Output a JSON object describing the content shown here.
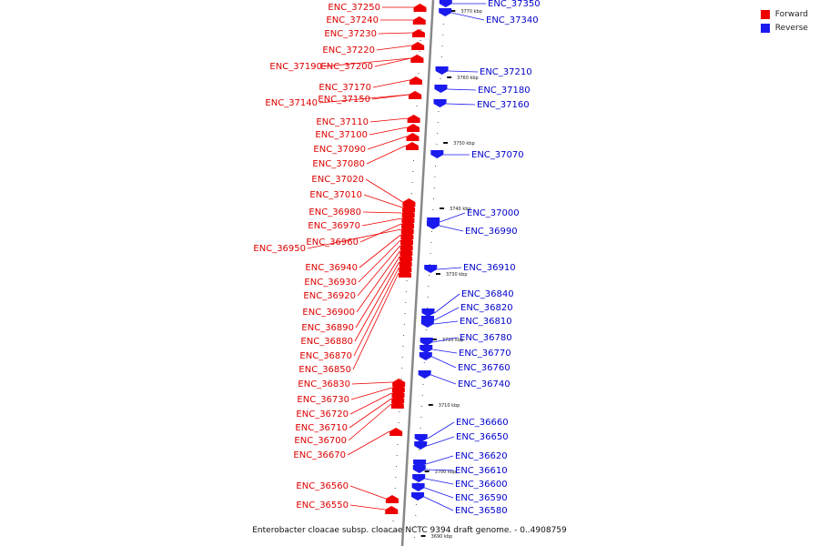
{
  "colors": {
    "forward": "#ee0000",
    "reverse": "#1a1aee",
    "backbone": "#888888",
    "tick": "#111111"
  },
  "legend": [
    {
      "label": "Forward",
      "color": "#ee0000"
    },
    {
      "label": "Reverse",
      "color": "#1a1aee"
    }
  ],
  "caption": "Enterobacter cloacae subsp. cloacae NCTC 9394 draft genome. - 0..4908759",
  "ticks": [
    "3770 kbp",
    "3760 kbp",
    "3750 kbp",
    "3740 kbp",
    "3730 kbp",
    "3720 kbp",
    "3710 kbp",
    "3700 kbp",
    "3690 kbp"
  ],
  "forward_genes": [
    "ENC_37250",
    "ENC_37240",
    "ENC_37230",
    "ENC_37220",
    "ENC_37190",
    "ENC_37200",
    "ENC_37170",
    "ENC_37150",
    "ENC_37140",
    "ENC_37110",
    "ENC_37100",
    "ENC_37090",
    "ENC_37080",
    "ENC_37020",
    "ENC_37010",
    "ENC_36980",
    "ENC_36970",
    "ENC_36960",
    "ENC_36950",
    "ENC_36940",
    "ENC_36930",
    "ENC_36920",
    "ENC_36900",
    "ENC_36890",
    "ENC_36880",
    "ENC_36870",
    "ENC_36850",
    "ENC_36830",
    "ENC_36730",
    "ENC_36720",
    "ENC_36710",
    "ENC_36700",
    "ENC_36670",
    "ENC_36560",
    "ENC_36550"
  ],
  "reverse_genes": [
    "ENC_37350",
    "ENC_37340",
    "ENC_37210",
    "ENC_37180",
    "ENC_37160",
    "ENC_37070",
    "ENC_37000",
    "ENC_36990",
    "ENC_36910",
    "ENC_36840",
    "ENC_36820",
    "ENC_36810",
    "ENC_36780",
    "ENC_36770",
    "ENC_36760",
    "ENC_36740",
    "ENC_36660",
    "ENC_36650",
    "ENC_36620",
    "ENC_36610",
    "ENC_36600",
    "ENC_36590",
    "ENC_36580"
  ]
}
